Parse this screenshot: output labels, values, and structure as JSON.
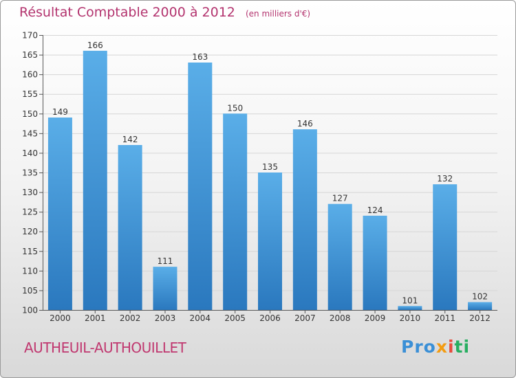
{
  "chart_data": {
    "type": "bar",
    "title": "Résultat Comptable 2000 à 2012",
    "subtitle": "(en milliers d'€)",
    "categories": [
      "2000",
      "2001",
      "2002",
      "2003",
      "2004",
      "2005",
      "2006",
      "2007",
      "2008",
      "2009",
      "2010",
      "2011",
      "2012"
    ],
    "values": [
      149,
      166,
      142,
      111,
      163,
      150,
      135,
      146,
      127,
      124,
      101,
      132,
      102
    ],
    "ylim": [
      100,
      170
    ],
    "yticks": [
      100,
      105,
      110,
      115,
      120,
      125,
      130,
      135,
      140,
      145,
      150,
      155,
      160,
      165,
      170
    ],
    "xlabel": "",
    "ylabel": "",
    "grid": true,
    "colors": {
      "bar_top": "#5aaee8",
      "bar_bottom": "#2a78be",
      "title": "#b3336e"
    }
  },
  "footer": {
    "commune": "AUTHEUIL-AUTHOUILLET",
    "logo": {
      "p1": "Pro",
      "p2": "x",
      "p3": "i",
      "p4": "ti"
    }
  }
}
